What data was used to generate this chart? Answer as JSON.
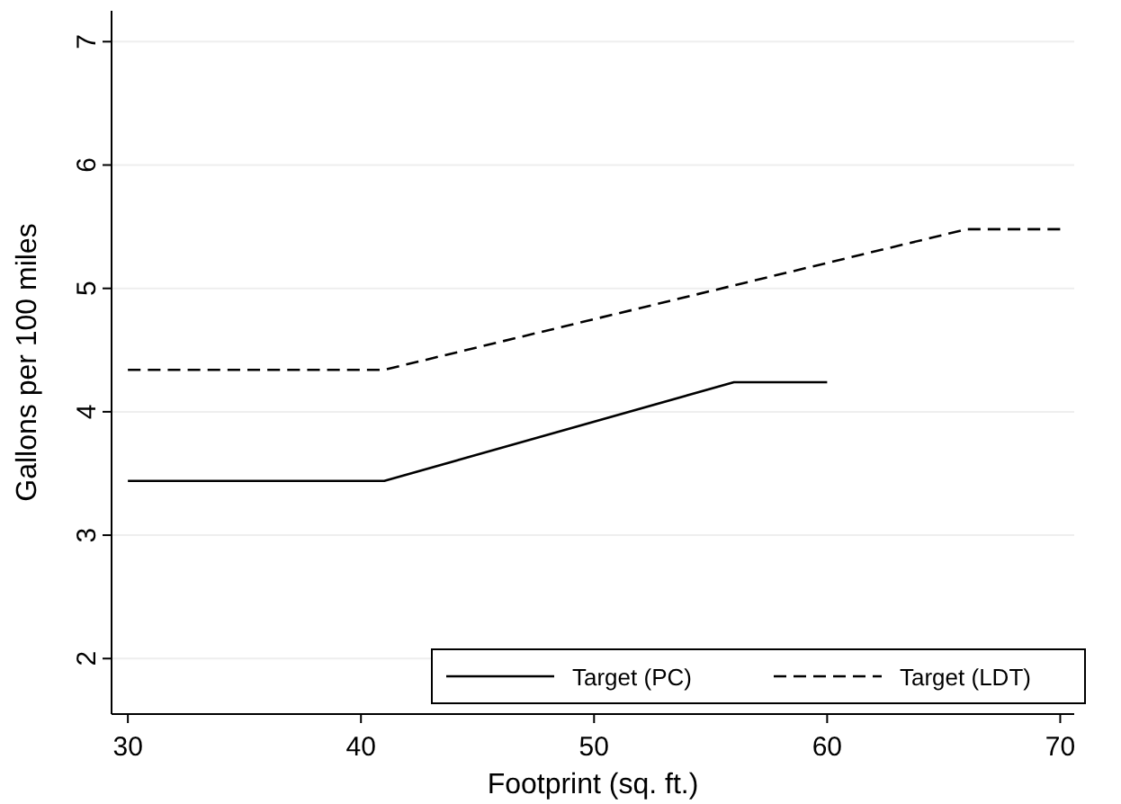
{
  "chart_data": {
    "type": "line",
    "xlabel": "Footprint (sq. ft.)",
    "ylabel": "Gallons per 100 miles",
    "xlim": [
      29.3,
      70.6
    ],
    "ylim": [
      1.55,
      7.25
    ],
    "xticks": [
      30,
      40,
      50,
      60,
      70
    ],
    "yticks": [
      2,
      3,
      4,
      5,
      6,
      7
    ],
    "grid": "y",
    "legend": "bottom right",
    "series": [
      {
        "name": "Target (PC)",
        "color": "#000000",
        "line_style": "solid",
        "x": [
          30,
          41,
          56,
          60
        ],
        "values": [
          3.44,
          3.44,
          4.24,
          4.24
        ]
      },
      {
        "name": "Target (LDT)",
        "color": "#000000",
        "line_style": "dashed",
        "x": [
          30,
          41,
          66,
          70
        ],
        "values": [
          4.34,
          4.34,
          5.48,
          5.48
        ]
      }
    ]
  }
}
